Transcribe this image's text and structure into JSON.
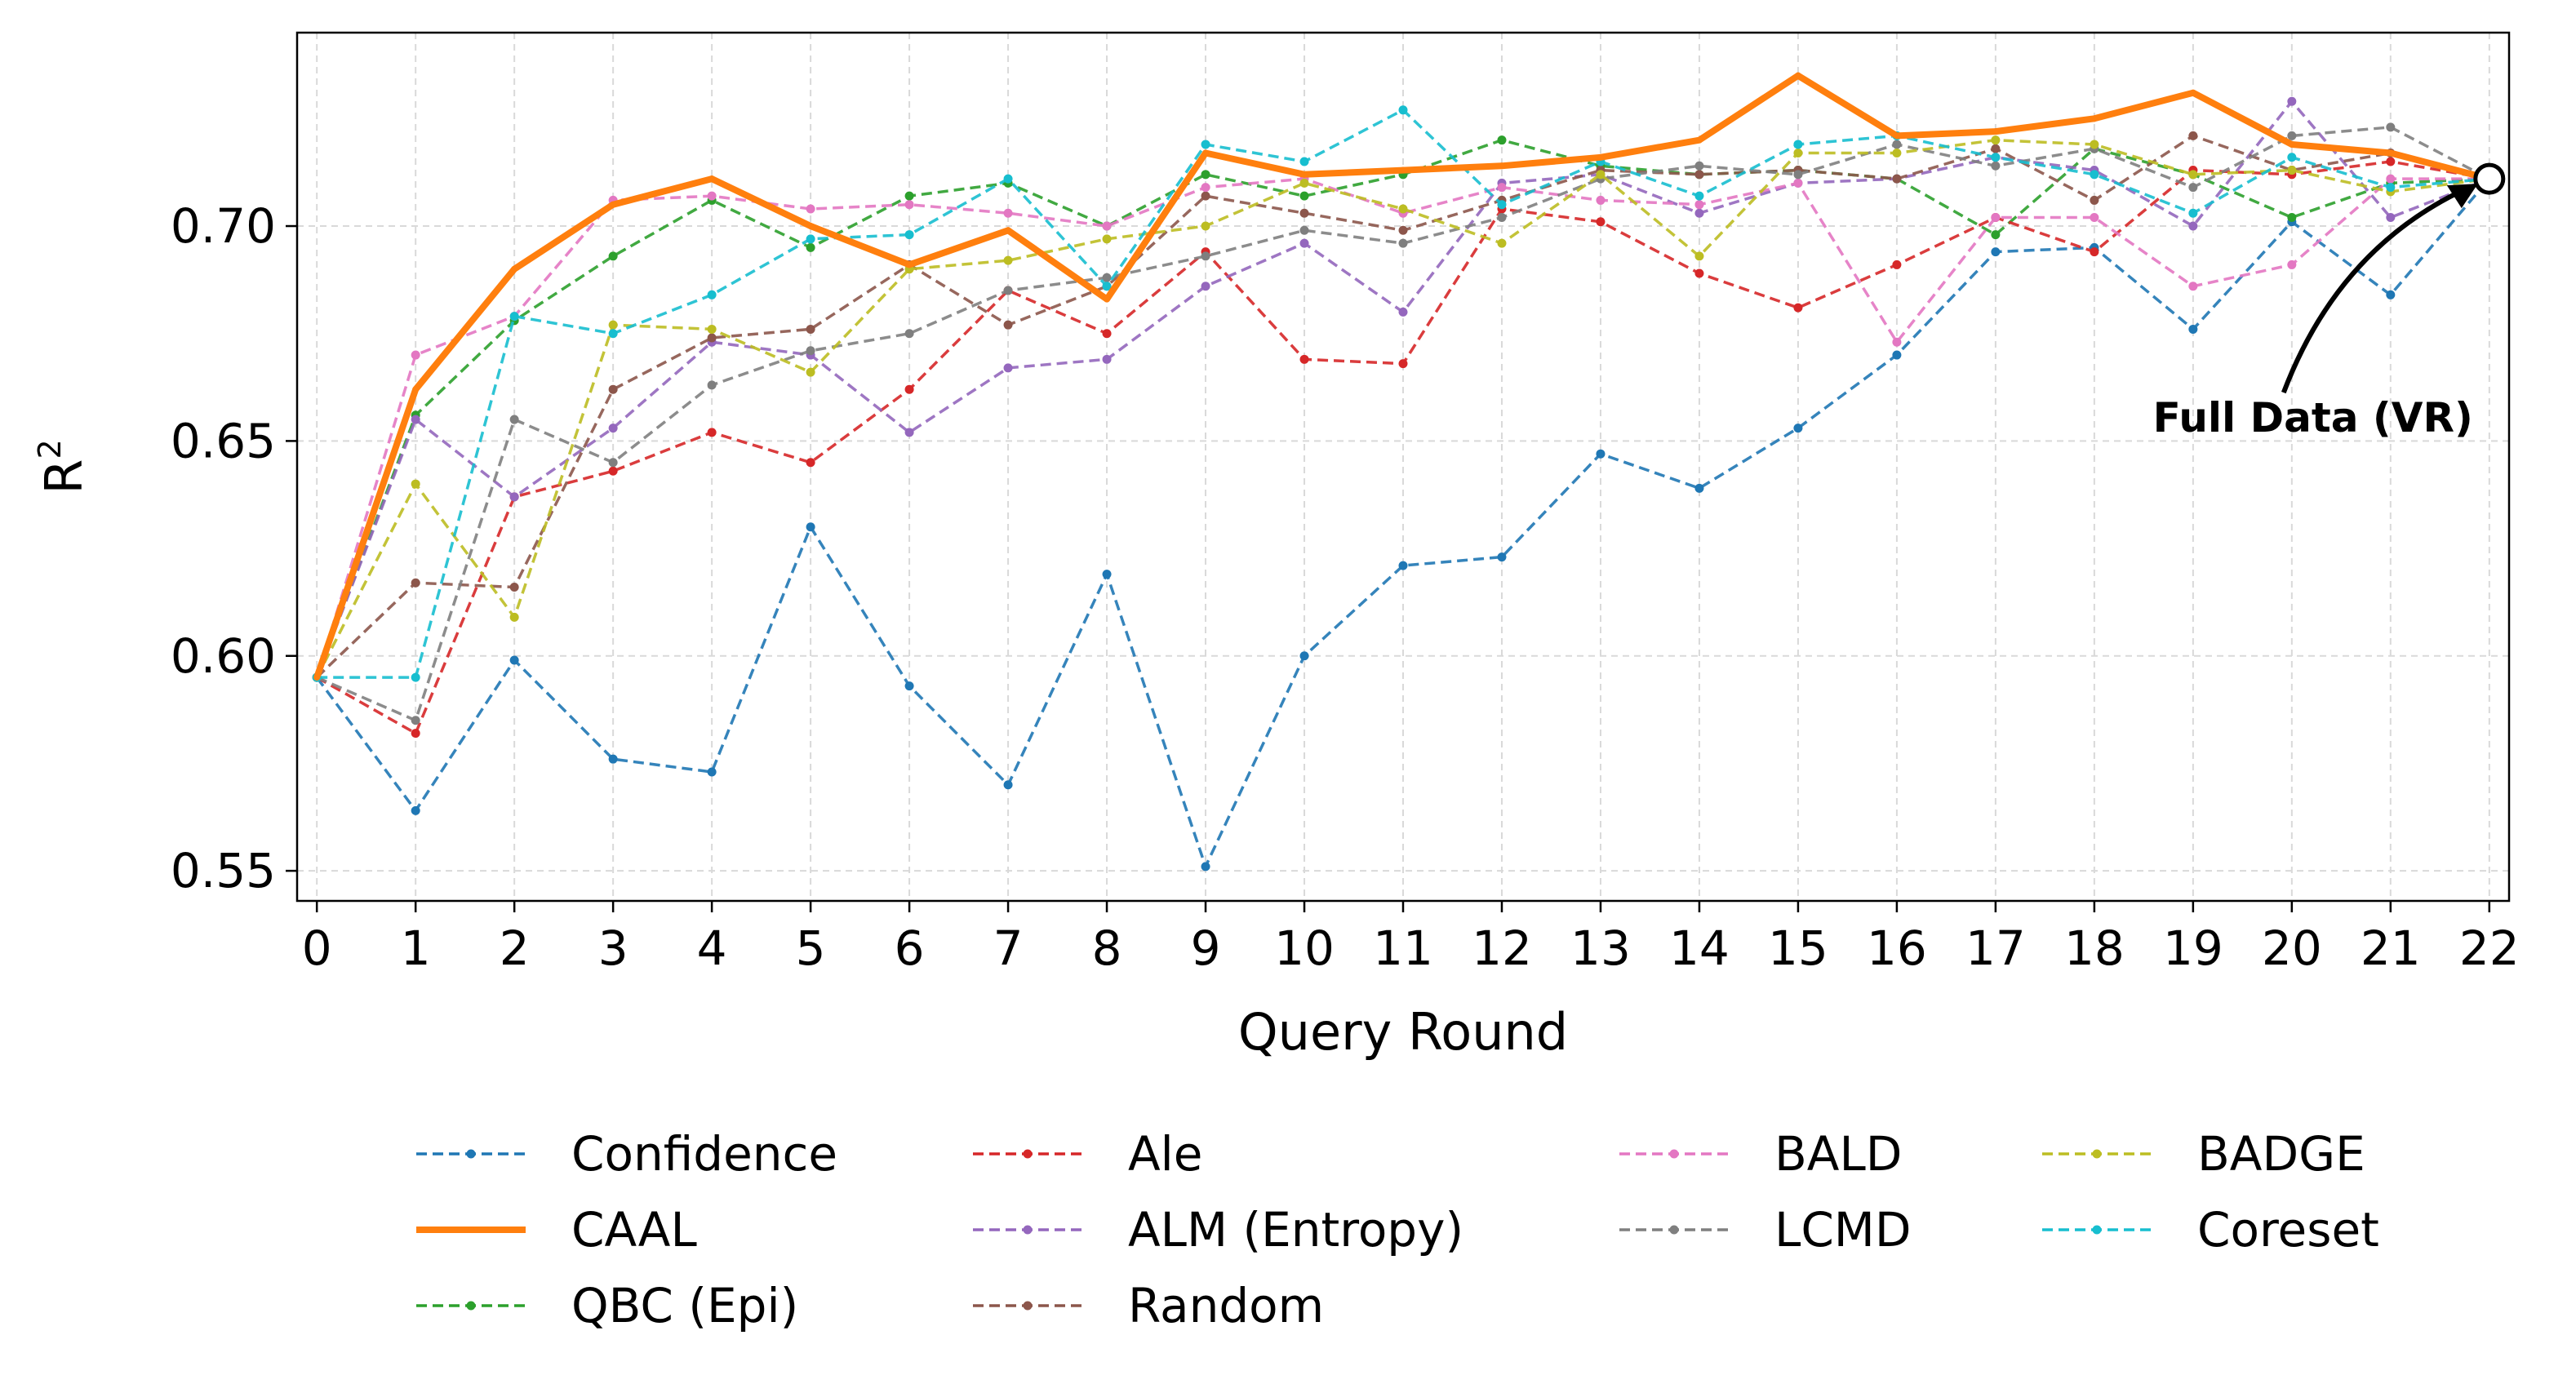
{
  "chart_data": {
    "type": "line",
    "title": "",
    "xlabel": "Query Round",
    "ylabel": "R",
    "ylabel_superscript": "2",
    "x": [
      0,
      1,
      2,
      3,
      4,
      5,
      6,
      7,
      8,
      9,
      10,
      11,
      12,
      13,
      14,
      15,
      16,
      17,
      18,
      19,
      20,
      21,
      22
    ],
    "xlim": [
      -0.2,
      22.2
    ],
    "ylim": [
      0.543,
      0.745
    ],
    "y_ticks": [
      "0.55",
      "0.60",
      "0.65",
      "0.70"
    ],
    "y_tick_values": [
      0.55,
      0.6,
      0.65,
      0.7
    ],
    "grid": true,
    "legend_position": "bottom",
    "series": [
      {
        "name": "Confidence",
        "color": "#1f77b4",
        "style": "dashed",
        "values": [
          0.595,
          0.564,
          0.599,
          0.576,
          0.573,
          0.63,
          0.593,
          0.57,
          0.619,
          0.551,
          0.6,
          0.621,
          0.623,
          0.647,
          0.639,
          0.653,
          0.67,
          0.694,
          0.695,
          0.676,
          0.701,
          0.684,
          0.711
        ]
      },
      {
        "name": "CAAL",
        "color": "#ff7f0e",
        "style": "solid",
        "values": [
          0.595,
          0.662,
          0.69,
          0.705,
          0.711,
          0.7,
          0.691,
          0.699,
          0.683,
          0.717,
          0.712,
          0.713,
          0.714,
          0.716,
          0.72,
          0.735,
          0.721,
          0.722,
          0.725,
          0.731,
          0.719,
          0.717,
          0.711
        ]
      },
      {
        "name": "QBC (Epi)",
        "color": "#2ca02c",
        "style": "dashed",
        "values": [
          0.595,
          0.656,
          0.678,
          0.693,
          0.706,
          0.695,
          0.707,
          0.71,
          0.7,
          0.712,
          0.707,
          0.712,
          0.72,
          0.714,
          0.712,
          0.713,
          0.711,
          0.698,
          0.718,
          0.712,
          0.702,
          0.71,
          0.711
        ]
      },
      {
        "name": "Ale",
        "color": "#d62728",
        "style": "dashed",
        "values": [
          0.595,
          0.582,
          0.637,
          0.643,
          0.652,
          0.645,
          0.662,
          0.685,
          0.675,
          0.694,
          0.669,
          0.668,
          0.704,
          0.701,
          0.689,
          0.681,
          0.691,
          0.702,
          0.694,
          0.713,
          0.712,
          0.715,
          0.711
        ]
      },
      {
        "name": "ALM (Entropy)",
        "color": "#9467bd",
        "style": "dashed",
        "values": [
          0.595,
          0.655,
          0.637,
          0.653,
          0.673,
          0.67,
          0.652,
          0.667,
          0.669,
          0.686,
          0.696,
          0.68,
          0.71,
          0.712,
          0.703,
          0.71,
          0.711,
          0.716,
          0.713,
          0.7,
          0.729,
          0.702,
          0.711
        ]
      },
      {
        "name": "Random",
        "color": "#8c564b",
        "style": "dashed",
        "values": [
          0.595,
          0.617,
          0.616,
          0.662,
          0.674,
          0.676,
          0.691,
          0.677,
          0.686,
          0.707,
          0.703,
          0.699,
          0.706,
          0.713,
          0.712,
          0.713,
          0.711,
          0.718,
          0.706,
          0.721,
          0.713,
          0.717,
          0.711
        ]
      },
      {
        "name": "BALD",
        "color": "#e377c2",
        "style": "dashed",
        "values": [
          0.595,
          0.67,
          0.679,
          0.706,
          0.707,
          0.704,
          0.705,
          0.703,
          0.7,
          0.709,
          0.711,
          0.703,
          0.709,
          0.706,
          0.705,
          0.71,
          0.673,
          0.702,
          0.702,
          0.686,
          0.691,
          0.711,
          0.711
        ]
      },
      {
        "name": "LCMD",
        "color": "#7f7f7f",
        "style": "dashed",
        "values": [
          0.595,
          0.585,
          0.655,
          0.645,
          0.663,
          0.671,
          0.675,
          0.685,
          0.688,
          0.693,
          0.699,
          0.696,
          0.702,
          0.711,
          0.714,
          0.712,
          0.719,
          0.714,
          0.718,
          0.709,
          0.721,
          0.723,
          0.711
        ]
      },
      {
        "name": "BADGE",
        "color": "#bcbd22",
        "style": "dashed",
        "values": [
          0.595,
          0.64,
          0.609,
          0.677,
          0.676,
          0.666,
          0.69,
          0.692,
          0.697,
          0.7,
          0.71,
          0.704,
          0.696,
          0.712,
          0.693,
          0.717,
          0.717,
          0.72,
          0.719,
          0.712,
          0.713,
          0.708,
          0.711
        ]
      },
      {
        "name": "Coreset",
        "color": "#17becf",
        "style": "dashed",
        "values": [
          0.595,
          0.595,
          0.679,
          0.675,
          0.684,
          0.697,
          0.698,
          0.711,
          0.686,
          0.719,
          0.715,
          0.727,
          0.705,
          0.715,
          0.707,
          0.719,
          0.721,
          0.716,
          0.712,
          0.703,
          0.716,
          0.709,
          0.711
        ]
      }
    ],
    "annotation": {
      "text": "Full Data (VR)",
      "x": 22,
      "y": 0.711
    }
  }
}
